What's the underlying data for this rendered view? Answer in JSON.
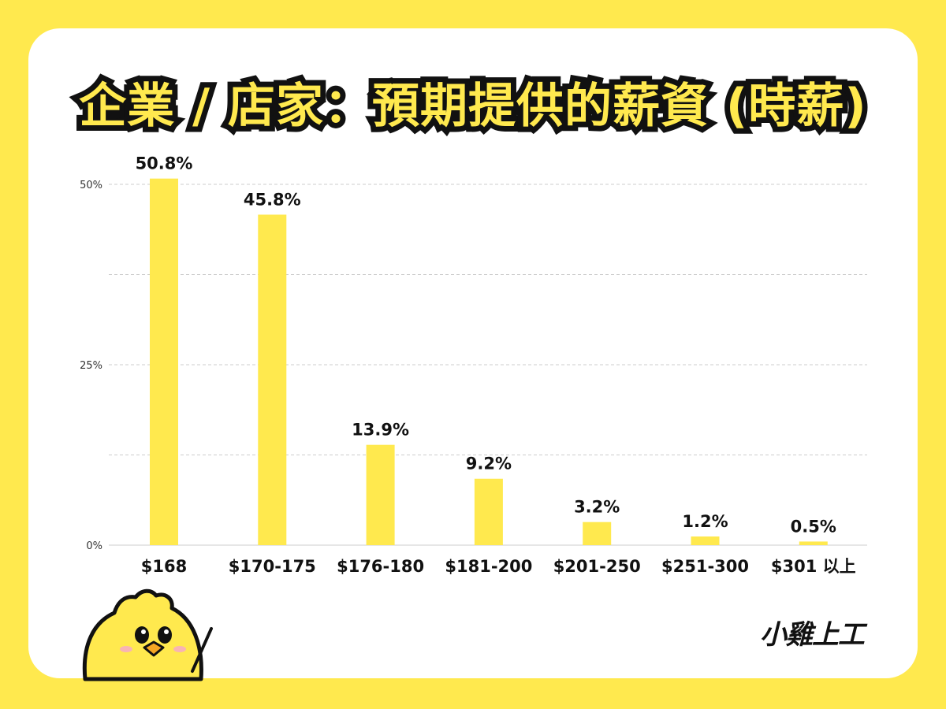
{
  "title": "企業 / 店家：預期提供的薪資 (時薪)",
  "brand": "小雞上工",
  "colors": {
    "background": "#FFE94E",
    "bar": "#FFE94E",
    "text": "#111111",
    "grid": "#CCCCCC"
  },
  "mascot_icon": "chick-mascot-icon",
  "chart_data": {
    "type": "bar",
    "title": "企業 / 店家：預期提供的薪資 (時薪)",
    "categories": [
      "$168",
      "$170-175",
      "$176-180",
      "$181-200",
      "$201-250",
      "$251-300",
      "$301 以上"
    ],
    "values": [
      50.8,
      45.8,
      13.9,
      9.2,
      3.2,
      1.2,
      0.5
    ],
    "data_labels": [
      "50.8%",
      "45.8%",
      "13.9%",
      "9.2%",
      "3.2%",
      "1.2%",
      "0.5%"
    ],
    "y_ticks": [
      0,
      25,
      50
    ],
    "y_tick_labels": [
      "0%",
      "25%",
      "50%"
    ],
    "ylim": [
      0,
      50
    ],
    "xlabel": "",
    "ylabel": "",
    "grid": true,
    "legend": "none"
  }
}
